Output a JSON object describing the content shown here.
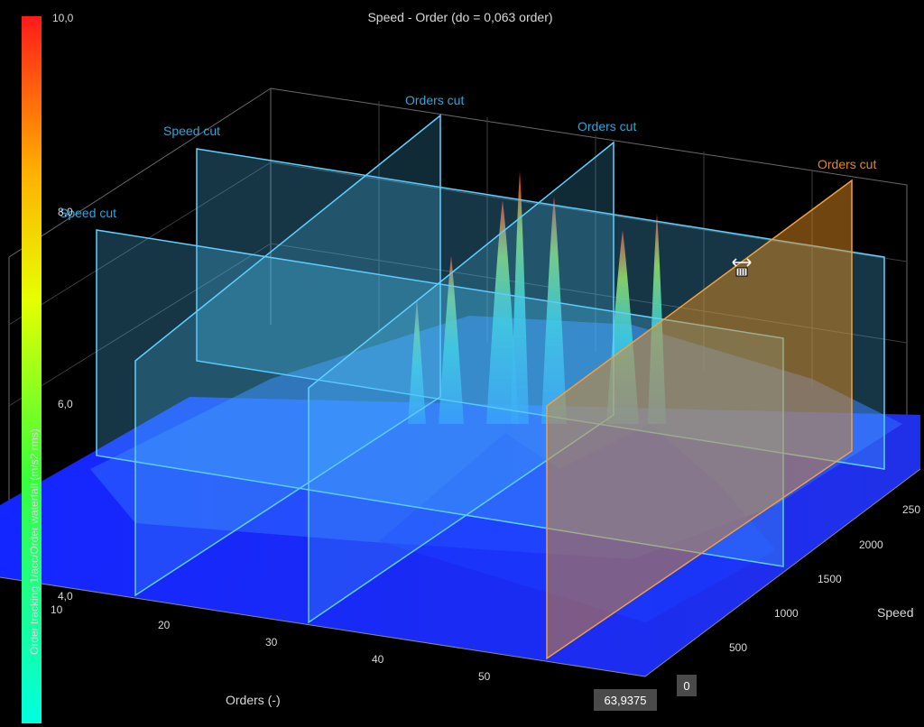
{
  "chart_data": {
    "type": "waterfall-3d",
    "title": "Speed - Order (do = 0,063 order)",
    "xlabel": "Orders (-)",
    "ylabel": "Speed",
    "zlabel": "Order tracking 1/acc/Order waterfall (m/s2 rms)",
    "x_ticks": [
      "10",
      "20",
      "30",
      "40",
      "50"
    ],
    "y_ticks": [
      "500",
      "1000",
      "1500",
      "2000",
      "250"
    ],
    "colorbar_ticks": [
      "10,0",
      "8,0",
      "6,0",
      "4,0"
    ],
    "colorbar_range": [
      4.0,
      10.0
    ],
    "colors": {
      "background": "#000000",
      "surface_low": "#1f2bff",
      "cut_plane": "#4fc3f7",
      "cut_label": "#29a8e0",
      "selected_cut": "#e08a1e",
      "colorbar_low": "#00ffe0",
      "colorbar_high": "#ff1a1a"
    },
    "cuts": [
      {
        "type": "speed",
        "label": "Speed cut"
      },
      {
        "type": "speed",
        "label": "Speed cut"
      },
      {
        "type": "orders",
        "label": "Orders cut"
      },
      {
        "type": "orders",
        "label": "Orders cut"
      },
      {
        "type": "orders",
        "label": "Orders cut",
        "selected": true
      }
    ],
    "peaks": [
      {
        "order": 31,
        "amplitude": 7.0
      },
      {
        "order": 33,
        "amplitude": 8.0
      },
      {
        "order": 36,
        "amplitude": 9.3
      },
      {
        "order": 37,
        "amplitude": 10.0
      },
      {
        "order": 39,
        "amplitude": 9.4
      },
      {
        "order": 43,
        "amplitude": 8.6
      },
      {
        "order": 45,
        "amplitude": 9.0
      }
    ],
    "readouts": {
      "orders": "63,9375",
      "speed": "0"
    }
  }
}
